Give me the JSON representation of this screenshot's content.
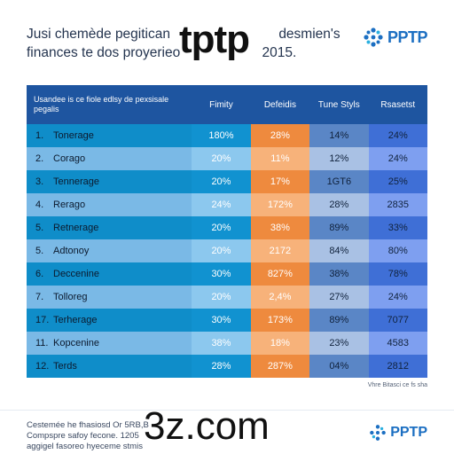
{
  "header": {
    "title_line1": "Jusi chemède pegitican",
    "title_line2": "finances te dos proyerieo",
    "title_tail1": "desmien's",
    "title_tail2": "2015.",
    "logo": "PPTP",
    "logo_icon": "snowflake-icon",
    "overlay_text": "tptp"
  },
  "chart_data": {
    "type": "table",
    "columns": [
      "Usandee is ce fiole edlsy de pexsisale pegalis",
      "Fimity",
      "Defeidis",
      "Tune Styls",
      "Rsasetst"
    ],
    "rows": [
      {
        "index": "1.",
        "name": "Tonerage",
        "values": [
          "180%",
          "28%",
          "14%",
          "24%"
        ]
      },
      {
        "index": "2.",
        "name": "Corago",
        "values": [
          "20%",
          "11%",
          "12%",
          "24%"
        ]
      },
      {
        "index": "3.",
        "name": "Tennerage",
        "values": [
          "20%",
          "17%",
          "1GT6",
          "25%"
        ]
      },
      {
        "index": "4.",
        "name": "Rerago",
        "values": [
          "24%",
          "172%",
          "28%",
          "2835"
        ]
      },
      {
        "index": "5.",
        "name": "Retnerage",
        "values": [
          "20%",
          "38%",
          "89%",
          "33%"
        ]
      },
      {
        "index": "5.",
        "name": "Adtonoy",
        "values": [
          "20%",
          "2172",
          "84%",
          "80%"
        ]
      },
      {
        "index": "6.",
        "name": "Deccenine",
        "values": [
          "30%",
          "827%",
          "38%",
          "78%"
        ]
      },
      {
        "index": "7.",
        "name": "Tolloreg",
        "values": [
          "20%",
          "2,4%",
          "27%",
          "24%"
        ]
      },
      {
        "index": "17.",
        "name": "Terherage",
        "values": [
          "30%",
          "173%",
          "89%",
          "7077"
        ]
      },
      {
        "index": "11.",
        "name": "Kopcenine",
        "values": [
          "38%",
          "18%",
          "23%",
          "4583"
        ]
      },
      {
        "index": "12.",
        "name": "Terds",
        "values": [
          "28%",
          "287%",
          "04%",
          "2812"
        ]
      }
    ],
    "column_colors": {
      "header": "#1e55a0",
      "name_odd": "#0f8dc9",
      "name_even": "#7ab9e6",
      "c1_odd": "#1192d0",
      "c1_even": "#8cc8ee",
      "c2_odd": "#ee8a3e",
      "c2_even": "#f7b27a",
      "c3_odd": "#5a86c6",
      "c3_even": "#a9c1e4",
      "c4_odd": "#3f6fd6",
      "c4_even": "#7e9ff0"
    }
  },
  "source_note": "Vhre Bitasci ce fs sha",
  "footer": {
    "line1": "Cestemée he fhasiosd Or 5RB,B",
    "line2": "Compspre safoy fecone. 1205",
    "line3": "aggigel fasoreo hyeceme stmis",
    "url_overlay": "3z.com",
    "logo": "PPTP",
    "logo_icon": "snowflake-icon"
  }
}
